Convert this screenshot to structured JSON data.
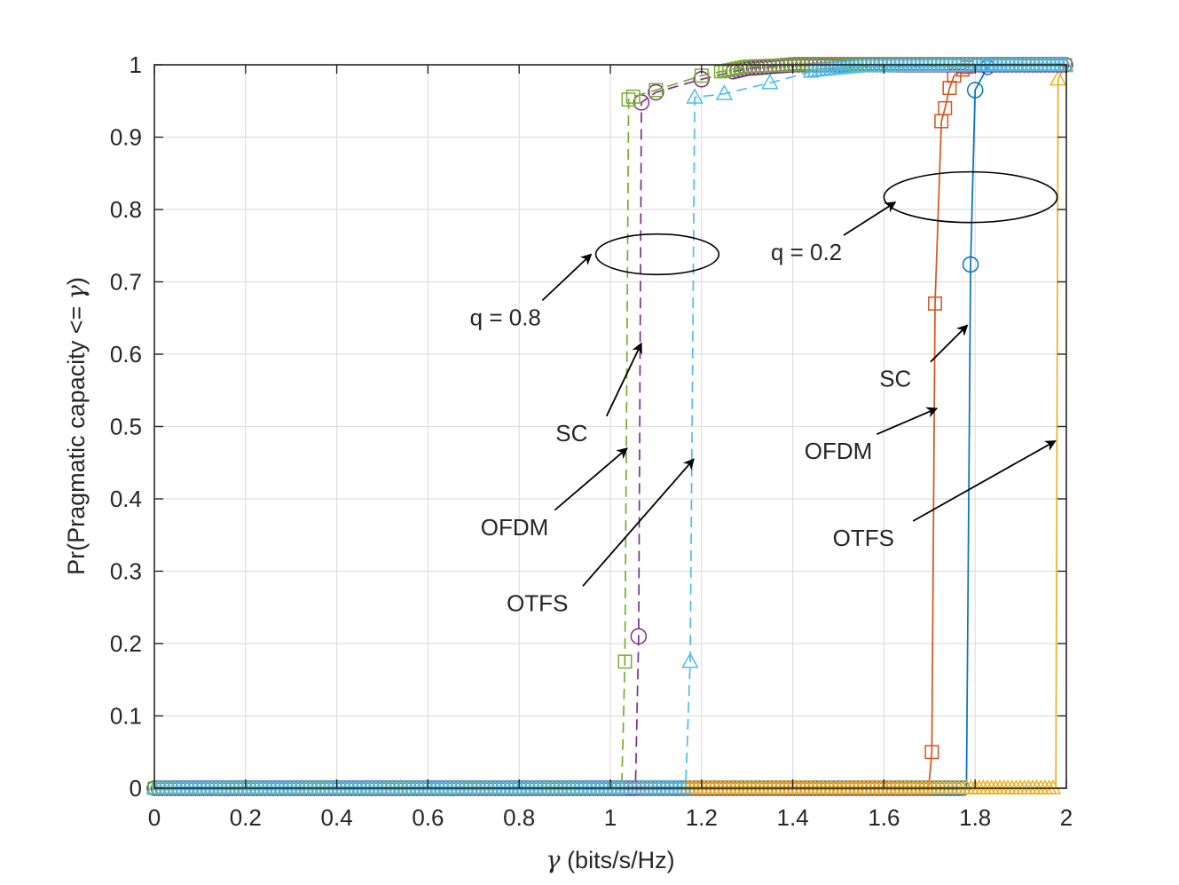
{
  "chart_data": {
    "type": "line",
    "title": "",
    "xlabel_symbol": "γ",
    "xlabel": " (bits/s/Hz)",
    "ylabel_prefix": "Pr(Pragmatic capacity <= ",
    "ylabel_symbol": "γ",
    "ylabel_suffix": ")",
    "xlim": [
      0,
      2
    ],
    "ylim": [
      0,
      1
    ],
    "grid": true,
    "x_ticks": [
      0,
      0.2,
      0.4,
      0.6,
      0.8,
      1,
      1.2,
      1.4,
      1.6,
      1.8,
      2
    ],
    "x_tick_labels": [
      "0",
      "0.2",
      "0.4",
      "0.6",
      "0.8",
      "1",
      "1.2",
      "1.4",
      "1.6",
      "1.8",
      "2"
    ],
    "y_ticks": [
      0,
      0.1,
      0.2,
      0.3,
      0.4,
      0.5,
      0.6,
      0.7,
      0.8,
      0.9,
      1
    ],
    "y_tick_labels": [
      "0",
      "0.1",
      "0.2",
      "0.3",
      "0.4",
      "0.5",
      "0.6",
      "0.7",
      "0.8",
      "0.9",
      "1"
    ],
    "series": [
      {
        "name": "SC, q = 0.2",
        "color": "#0072BD",
        "marker": "circle",
        "dash": "solid",
        "points": [
          [
            0,
            0
          ],
          [
            1.775,
            0
          ],
          [
            1.781,
            0
          ],
          [
            1.79,
            0.724
          ],
          [
            1.8,
            0.965
          ],
          [
            1.83,
            1.0
          ],
          [
            2,
            1
          ]
        ]
      },
      {
        "name": "OFDM, q = 0.2",
        "color": "#D95319",
        "marker": "square",
        "dash": "solid",
        "points": [
          [
            0,
            0
          ],
          [
            1.698,
            0
          ],
          [
            1.705,
            0.05
          ],
          [
            1.712,
            0.67
          ],
          [
            1.726,
            0.922
          ],
          [
            1.734,
            0.94
          ],
          [
            1.744,
            0.968
          ],
          [
            1.754,
            0.985
          ],
          [
            1.79,
            1.0
          ],
          [
            2,
            1
          ]
        ]
      },
      {
        "name": "OTFS, q = 0.2",
        "color": "#EDB120",
        "marker": "triangle",
        "dash": "solid",
        "points": [
          [
            0,
            0
          ],
          [
            1.97,
            0
          ],
          [
            1.977,
            0
          ],
          [
            1.982,
            0.98
          ],
          [
            2,
            1
          ]
        ]
      },
      {
        "name": "SC, q = 0.8",
        "color": "#7E2F8E",
        "marker": "circle",
        "dash": "dashed",
        "points": [
          [
            0,
            0
          ],
          [
            1.055,
            0
          ],
          [
            1.062,
            0.21
          ],
          [
            1.068,
            0.948
          ],
          [
            1.1,
            0.962
          ],
          [
            1.2,
            0.98
          ],
          [
            1.3,
            0.995
          ],
          [
            1.4,
            1.0
          ],
          [
            2,
            1
          ]
        ]
      },
      {
        "name": "OFDM, q = 0.8",
        "color": "#77AC30",
        "marker": "square",
        "dash": "dashed",
        "points": [
          [
            0,
            0
          ],
          [
            1.025,
            0
          ],
          [
            1.032,
            0.175
          ],
          [
            1.04,
            0.952
          ],
          [
            1.05,
            0.956
          ],
          [
            1.1,
            0.965
          ],
          [
            1.2,
            0.985
          ],
          [
            1.3,
            0.998
          ],
          [
            1.4,
            1.0
          ],
          [
            2,
            1
          ]
        ]
      },
      {
        "name": "OTFS, q = 0.8",
        "color": "#4DBEEE",
        "marker": "triangle",
        "dash": "dashed",
        "points": [
          [
            0,
            0
          ],
          [
            1.165,
            0
          ],
          [
            1.175,
            0.175
          ],
          [
            1.185,
            0.955
          ],
          [
            1.25,
            0.96
          ],
          [
            1.35,
            0.975
          ],
          [
            1.45,
            0.992
          ],
          [
            1.55,
            0.998
          ],
          [
            2,
            1
          ]
        ]
      }
    ],
    "annotations": [
      {
        "text": "q = 0.8",
        "x": 0.77,
        "y": 0.64,
        "arrow_to": [
          0.958,
          0.738
        ]
      },
      {
        "text": "SC",
        "x": 0.915,
        "y": 0.48,
        "arrow_to": [
          1.068,
          0.615
        ]
      },
      {
        "text": "OFDM",
        "x": 0.79,
        "y": 0.35,
        "arrow_to": [
          1.037,
          0.47
        ]
      },
      {
        "text": "OTFS",
        "x": 0.84,
        "y": 0.245,
        "arrow_to": [
          1.183,
          0.455
        ]
      },
      {
        "text": "q = 0.2",
        "x": 1.43,
        "y": 0.73,
        "arrow_to": [
          1.625,
          0.81
        ]
      },
      {
        "text": "SC",
        "x": 1.625,
        "y": 0.555,
        "arrow_to": [
          1.783,
          0.64
        ]
      },
      {
        "text": "OFDM",
        "x": 1.5,
        "y": 0.455,
        "arrow_to": [
          1.716,
          0.525
        ]
      },
      {
        "text": "OTFS",
        "x": 1.555,
        "y": 0.335,
        "arrow_to": [
          1.976,
          0.48
        ]
      }
    ],
    "ellipses": [
      {
        "cx": 1.103,
        "cy": 0.738,
        "rx": 0.135,
        "ry": 0.028
      },
      {
        "cx": 1.79,
        "cy": 0.817,
        "rx": 0.19,
        "ry": 0.035
      }
    ]
  }
}
